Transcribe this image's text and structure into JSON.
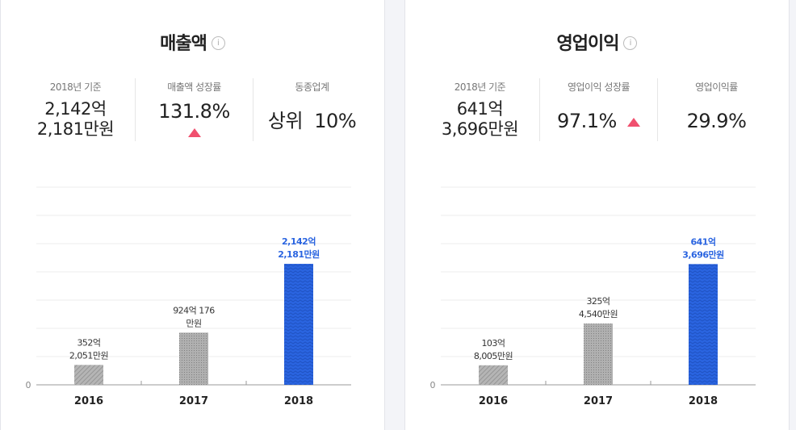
{
  "colors": {
    "accent": "#2a64e0",
    "gray_bar": "#a3a3a3",
    "up_arrow": "#f0506e"
  },
  "panels": [
    {
      "title": "매출액",
      "info_icon": "info-icon",
      "stats": [
        {
          "label": "2018년 기준",
          "value_line1": "2,142억",
          "value_line2": "2,181만원"
        },
        {
          "label": "매출액 성장률",
          "value": "131.8%",
          "trend": "up"
        },
        {
          "label": "동종업계",
          "value": "상위  10%"
        }
      ]
    },
    {
      "title": "영업이익",
      "info_icon": "info-icon",
      "stats": [
        {
          "label": "2018년 기준",
          "value_line1": "641억",
          "value_line2": "3,696만원"
        },
        {
          "label": "영업이익 성장률",
          "value": "97.1%",
          "trend": "up"
        },
        {
          "label": "영업이익률",
          "value": "29.9%"
        }
      ]
    }
  ],
  "chart_data": [
    {
      "type": "bar",
      "categories": [
        "2016",
        "2017",
        "2018"
      ],
      "values": [
        352.2051,
        924.0176,
        2142.2181
      ],
      "unit": "억원",
      "data_labels": [
        [
          "352억",
          "2,051만원"
        ],
        [
          "924억 176",
          "만원"
        ],
        [
          "2,142억",
          "2,181만원"
        ]
      ],
      "highlight_index": 2,
      "ylim": [
        0,
        3500
      ],
      "y_tick_labels": [
        "0"
      ],
      "grid": true
    },
    {
      "type": "bar",
      "categories": [
        "2016",
        "2017",
        "2018"
      ],
      "values": [
        103.8005,
        325.454,
        641.3696
      ],
      "unit": "억원",
      "data_labels": [
        [
          "103억",
          "8,005만원"
        ],
        [
          "325억",
          "4,540만원"
        ],
        [
          "641억",
          "3,696만원"
        ]
      ],
      "highlight_index": 2,
      "ylim": [
        0,
        1050
      ],
      "y_tick_labels": [
        "0"
      ],
      "grid": true
    }
  ]
}
